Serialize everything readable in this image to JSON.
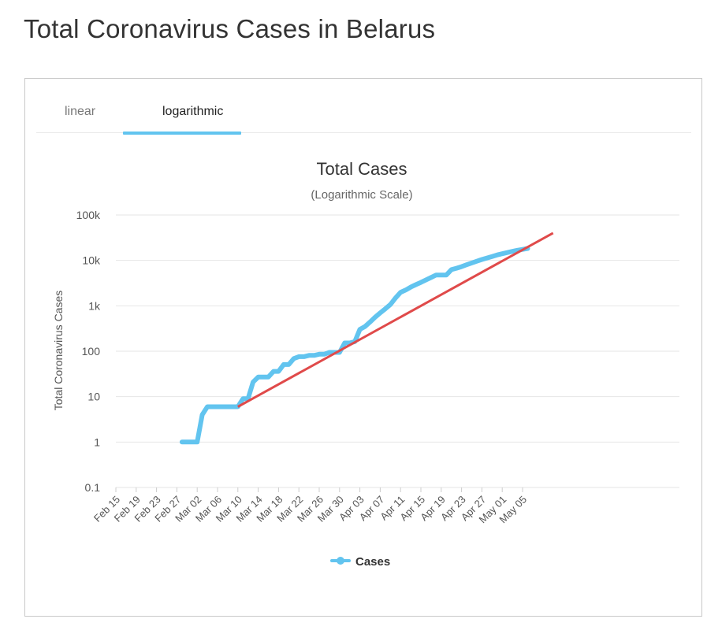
{
  "page": {
    "title": "Total Coronavirus Cases in Belarus"
  },
  "tabs": [
    {
      "label": "linear",
      "active": false
    },
    {
      "label": "logarithmic",
      "active": true
    }
  ],
  "colors": {
    "series": "#62c4ef",
    "trend": "#e04a4a",
    "active_tab": "#62c4ef"
  },
  "chart_data": {
    "type": "line",
    "title": "Total Cases",
    "subtitle": "(Logarithmic Scale)",
    "ylabel": "Total Coronavirus Cases",
    "xlabel": "",
    "y_scale": "log",
    "ylim": [
      0.1,
      100000
    ],
    "y_ticks": [
      0.1,
      1,
      10,
      100,
      1000,
      10000,
      100000
    ],
    "y_tick_labels": [
      "0.1",
      "1",
      "10",
      "100",
      "1k",
      "10k",
      "100k"
    ],
    "x_tick_labels": [
      "Feb 15",
      "Feb 19",
      "Feb 23",
      "Feb 27",
      "Mar 02",
      "Mar 06",
      "Mar 10",
      "Mar 14",
      "Mar 18",
      "Mar 22",
      "Mar 26",
      "Mar 30",
      "Apr 03",
      "Apr 07",
      "Apr 11",
      "Apr 15",
      "Apr 19",
      "Apr 23",
      "Apr 27",
      "May 01",
      "May 05"
    ],
    "grid": true,
    "legend": {
      "position": "bottom-center"
    },
    "series": [
      {
        "name": "Cases",
        "points": [
          [
            "Feb 28",
            1
          ],
          [
            "Feb 29",
            1
          ],
          [
            "Mar 01",
            1
          ],
          [
            "Mar 02",
            1
          ],
          [
            "Mar 03",
            4
          ],
          [
            "Mar 04",
            6
          ],
          [
            "Mar 05",
            6
          ],
          [
            "Mar 06",
            6
          ],
          [
            "Mar 07",
            6
          ],
          [
            "Mar 08",
            6
          ],
          [
            "Mar 09",
            6
          ],
          [
            "Mar 10",
            6
          ],
          [
            "Mar 11",
            9
          ],
          [
            "Mar 12",
            9
          ],
          [
            "Mar 13",
            21
          ],
          [
            "Mar 14",
            27
          ],
          [
            "Mar 15",
            27
          ],
          [
            "Mar 16",
            27
          ],
          [
            "Mar 17",
            36
          ],
          [
            "Mar 18",
            36
          ],
          [
            "Mar 19",
            51
          ],
          [
            "Mar 20",
            51
          ],
          [
            "Mar 21",
            69
          ],
          [
            "Mar 22",
            76
          ],
          [
            "Mar 23",
            76
          ],
          [
            "Mar 24",
            81
          ],
          [
            "Mar 25",
            81
          ],
          [
            "Mar 26",
            86
          ],
          [
            "Mar 27",
            86
          ],
          [
            "Mar 28",
            94
          ],
          [
            "Mar 29",
            94
          ],
          [
            "Mar 30",
            94
          ],
          [
            "Mar 31",
            152
          ],
          [
            "Apr 01",
            152
          ],
          [
            "Apr 02",
            163
          ],
          [
            "Apr 03",
            304
          ],
          [
            "Apr 04",
            351
          ],
          [
            "Apr 05",
            440
          ],
          [
            "Apr 06",
            562
          ],
          [
            "Apr 07",
            700
          ],
          [
            "Apr 08",
            861
          ],
          [
            "Apr 09",
            1066
          ],
          [
            "Apr 10",
            1486
          ],
          [
            "Apr 11",
            1981
          ],
          [
            "Apr 12",
            2226
          ],
          [
            "Apr 13",
            2578
          ],
          [
            "Apr 14",
            2919
          ],
          [
            "Apr 15",
            3281
          ],
          [
            "Apr 16",
            3728
          ],
          [
            "Apr 17",
            4204
          ],
          [
            "Apr 18",
            4779
          ],
          [
            "Apr 19",
            4779
          ],
          [
            "Apr 20",
            4779
          ],
          [
            "Apr 21",
            6264
          ],
          [
            "Apr 22",
            6723
          ],
          [
            "Apr 23",
            7281
          ],
          [
            "Apr 24",
            8022
          ],
          [
            "Apr 25",
            8773
          ],
          [
            "Apr 26",
            9590
          ],
          [
            "Apr 27",
            10463
          ],
          [
            "Apr 28",
            11289
          ],
          [
            "Apr 29",
            12208
          ],
          [
            "Apr 30",
            13181
          ],
          [
            "May 01",
            14027
          ],
          [
            "May 02",
            14917
          ],
          [
            "May 03",
            15828
          ],
          [
            "May 04",
            16705
          ],
          [
            "May 05",
            17489
          ],
          [
            "May 06",
            18350
          ]
        ]
      },
      {
        "name": "",
        "points": [
          [
            "Mar 10",
            6
          ],
          [
            "May 11",
            40000
          ]
        ]
      }
    ]
  }
}
